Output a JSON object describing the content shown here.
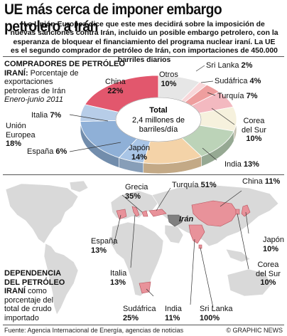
{
  "header": {
    "title": "UE más cerca de imponer embargo petrolero a Irán",
    "intro": "La Unión Europea dice que este mes decidirá sobre la imposición de nuevas sanciones contra Irán, incluido un posible embargo petrolero, con la esperanza de bloquear el financiamiento del programa nuclear iraní. La UE es el segundo comprador de petróleo de Irán, con importaciones de 450.000 barriles diarios"
  },
  "donut": {
    "heading_1": "COMPRADORES DE PETRÓLEO",
    "heading_2": "IRANÍ:",
    "desc_1": "Porcentaje de",
    "desc_2": "exportaciones",
    "desc_3": "petroleras de Irán",
    "period": "Enero-junio 2011",
    "center_1": "Total",
    "center_2": "2,4 millones de",
    "center_3": "barriles/día"
  },
  "map_section": {
    "heading_1": "DEPENDENCIA",
    "heading_2": "DEL PETRÓLEO",
    "heading_3": "IRANÍ",
    "desc_1": "como",
    "desc_2": "porcentaje del",
    "desc_3": "total de crudo",
    "desc_4": "importado",
    "iran_label": "Irán"
  },
  "footer": {
    "source": "Fuente: Agencia Internacional de Energía, agencias de noticias",
    "credit": "© GRAPHIC NEWS"
  },
  "colors": {
    "china": "#e2576d",
    "otros": "#e6e6e6",
    "sri_lanka": "#f8d7d9",
    "sudafrica": "#ee9e9e",
    "turquia": "#f3b9c0",
    "corea": "#f6f1dd",
    "india": "#bcd3b8",
    "japon": "#f4d3a8",
    "espana": "#a9c5e6",
    "europa": "#8fb0d7",
    "italia": "#b7cde8",
    "map_land": "#d9d9d9",
    "map_highlight": "#e8929a",
    "iran": "#808080"
  },
  "chart_data": [
    {
      "type": "pie",
      "title": "COMPRADORES DE PETRÓLEO IRANÍ",
      "total": "2,4 millones de barriles/día",
      "slices": [
        {
          "name": "China",
          "value": 22
        },
        {
          "name": "Otros",
          "value": 10
        },
        {
          "name": "Sri Lanka",
          "value": 2
        },
        {
          "name": "Sudáfrica",
          "value": 4
        },
        {
          "name": "Turquía",
          "value": 7
        },
        {
          "name": "Corea del Sur",
          "value": 10
        },
        {
          "name": "India",
          "value": 13
        },
        {
          "name": "Japón",
          "value": 14
        },
        {
          "name": "España",
          "value": 6
        },
        {
          "name": "Unión Europea",
          "value": 18
        },
        {
          "name": "Italia",
          "value": 7
        }
      ]
    },
    {
      "type": "table",
      "title": "DEPENDENCIA DEL PETRÓLEO IRANÍ",
      "rows": [
        {
          "name": "Grecia",
          "value": 35
        },
        {
          "name": "Turquía",
          "value": 51
        },
        {
          "name": "China",
          "value": 11
        },
        {
          "name": "España",
          "value": 13
        },
        {
          "name": "Japón",
          "value": 10
        },
        {
          "name": "Italia",
          "value": 13
        },
        {
          "name": "Corea del Sur",
          "value": 10
        },
        {
          "name": "Sudáfrica",
          "value": 25
        },
        {
          "name": "India",
          "value": 11
        },
        {
          "name": "Sri Lanka",
          "value": 100
        }
      ]
    }
  ],
  "pie_labels": {
    "china": "China",
    "china_v": "22%",
    "otros": "Otros",
    "otros_v": "10%",
    "sri": "Sri Lanka",
    "sri_v": "2%",
    "sud": "Sudáfrica",
    "sud_v": "4%",
    "tur": "Turquía",
    "tur_v": "7%",
    "corea_1": "Corea",
    "corea_2": "del Sur",
    "corea_v": "10%",
    "india": "India",
    "india_v": "13%",
    "japon": "Japón",
    "japon_v": "14%",
    "espana": "España",
    "espana_v": "6%",
    "ue_1": "Unión",
    "ue_2": "Europea",
    "ue_v": "18%",
    "italia": "Italia",
    "italia_v": "7%"
  },
  "map_labels": {
    "grecia": "Grecia",
    "grecia_v": "35%",
    "turquia": "Turquía",
    "turquia_v": "51%",
    "china": "China",
    "china_v": "11%",
    "espana": "España",
    "espana_v": "13%",
    "japon": "Japón",
    "japon_v": "10%",
    "italia": "Italia",
    "italia_v": "13%",
    "corea_1": "Corea",
    "corea_2": "del Sur",
    "corea_v": "10%",
    "sud": "Sudáfrica",
    "sud_v": "25%",
    "india": "India",
    "india_v": "11%",
    "sri": "Sri Lanka",
    "sri_v": "100%"
  }
}
